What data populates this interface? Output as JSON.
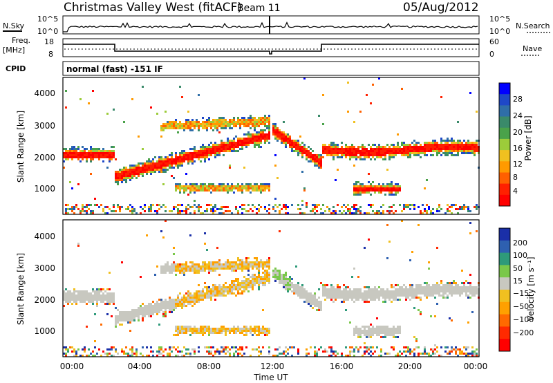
{
  "header": {
    "title": "Christmas Valley West (fitACF)",
    "beam": "Beam 11",
    "date": "05/Aug/2012"
  },
  "summary": {
    "nsky_label": "N.Sky",
    "nsky_ticks": [
      "10^5",
      "10^0"
    ],
    "nsearch_label": "N.Search",
    "nsearch_ticks": [
      "10^5",
      "10^0"
    ],
    "freq_label": "Freq.",
    "freq_unit": "[MHz]",
    "freq_ticks": [
      "18",
      "8"
    ],
    "nave_label": "Nave",
    "nave_ticks": [
      "60",
      "0"
    ],
    "cpid_label": "CPID",
    "cpid_value": "normal (fast) -151 IF"
  },
  "chart_data": [
    {
      "type": "heatmap",
      "name": "power-panel",
      "ylabel": "Slant Range [km]",
      "yticks": [
        "4000",
        "3000",
        "2000",
        "1000"
      ],
      "colorbar_label": "Power [dB]",
      "colorbar_ticks": [
        "28",
        "24",
        "20",
        "16",
        "12",
        "8",
        "4"
      ],
      "colorbar_colors": [
        "#0000ff",
        "#1e48c8",
        "#2f6ea8",
        "#3a8a6a",
        "#4aa24a",
        "#9ccc3a",
        "#f0c020",
        "#ff9a00",
        "#ff6000",
        "#ff2000",
        "#ff0000"
      ]
    },
    {
      "type": "heatmap",
      "name": "velocity-panel",
      "ylabel": "Slant Range [km]",
      "yticks": [
        "4000",
        "3000",
        "2000",
        "1000"
      ],
      "colorbar_label": "Velocity [m s⁻¹]",
      "colorbar_ticks": [
        "200",
        "100",
        "50",
        "15",
        "−15",
        "−50",
        "−100",
        "−200"
      ],
      "colorbar_colors": [
        "#1a2fa8",
        "#2e60b0",
        "#2e9a7a",
        "#7ac84a",
        "#c8c8c0",
        "#f0c020",
        "#ffa000",
        "#ff6a00",
        "#ff2a00",
        "#ff0000"
      ]
    }
  ],
  "xaxis": {
    "label": "Time UT",
    "ticks": [
      "00:00",
      "04:00",
      "08:00",
      "12:00",
      "16:00",
      "20:00",
      "00:00"
    ]
  }
}
